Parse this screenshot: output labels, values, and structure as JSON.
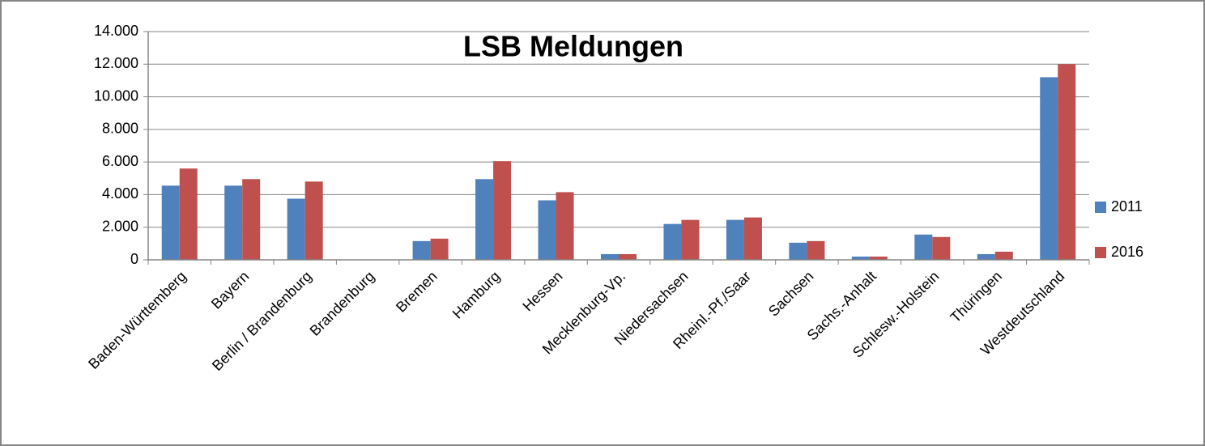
{
  "chart_data": {
    "type": "bar",
    "title": "LSB Meldungen",
    "categories": [
      "Baden-Württemberg",
      "Bayern",
      "Berlin / Brandenburg",
      "Brandenburg",
      "Bremen",
      "Hamburg",
      "Hessen",
      "Mecklenburg-Vp.",
      "Niedersachsen",
      "Rheinl.-Pf./Saar",
      "Sachsen",
      "Sachs.-Anhalt",
      "Schlesw.-Holstein",
      "Thüringen",
      "Westdeutschland"
    ],
    "series": [
      {
        "name": "2011",
        "color": "#4f81bd",
        "values": [
          4550,
          4550,
          3750,
          0,
          1150,
          4950,
          3650,
          350,
          2200,
          2450,
          1050,
          200,
          1550,
          350,
          11200
        ]
      },
      {
        "name": "2016",
        "color": "#c0504d",
        "values": [
          5600,
          4950,
          4800,
          0,
          1300,
          6050,
          4150,
          350,
          2450,
          2600,
          1150,
          200,
          1400,
          500,
          12000
        ]
      }
    ],
    "ylim": [
      0,
      14000
    ],
    "yticks": [
      0,
      {
        "value": 2000,
        "label": "2.000"
      },
      {
        "value": 4000,
        "label": "4.000"
      },
      {
        "value": 6000,
        "label": "6.000"
      },
      {
        "value": 8000,
        "label": "8.000"
      },
      {
        "value": 10000,
        "label": "10.000"
      },
      {
        "value": 12000,
        "label": "12.000"
      },
      {
        "value": 14000,
        "label": "14.000"
      }
    ],
    "grid": true,
    "legend": "right"
  }
}
